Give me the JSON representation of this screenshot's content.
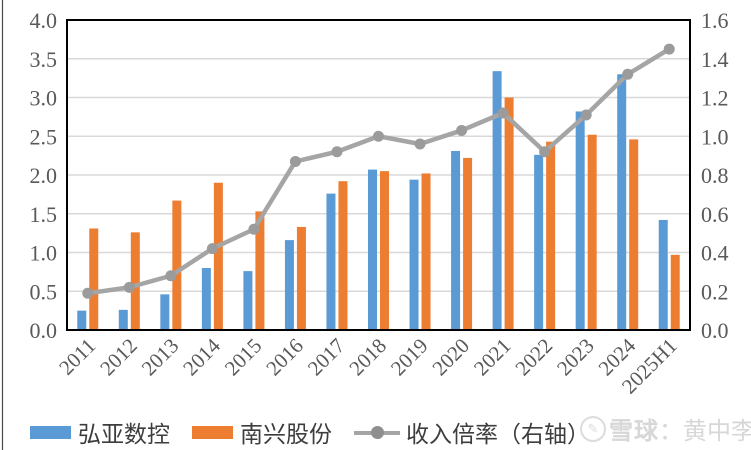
{
  "chart_data": {
    "type": "combo-bar-line",
    "categories": [
      "2011",
      "2012",
      "2013",
      "2014",
      "2015",
      "2016",
      "2017",
      "2018",
      "2019",
      "2020",
      "2021",
      "2022",
      "2023",
      "2024",
      "2025H1"
    ],
    "bar_series": [
      {
        "name": "弘亚数控",
        "color": "#5B9BD5",
        "values": [
          0.25,
          0.26,
          0.46,
          0.8,
          0.76,
          1.16,
          1.76,
          2.07,
          1.94,
          2.31,
          3.34,
          2.26,
          2.82,
          3.3,
          1.42
        ]
      },
      {
        "name": "南兴股份",
        "color": "#ED7D31",
        "values": [
          1.31,
          1.26,
          1.67,
          1.9,
          1.53,
          1.33,
          1.92,
          2.05,
          2.02,
          2.22,
          3.0,
          2.43,
          2.52,
          2.46,
          0.97
        ]
      }
    ],
    "line_series": {
      "name": "收入倍率（右轴）",
      "color": "#A5A5A5",
      "axis": "right",
      "values": [
        0.19,
        0.22,
        0.28,
        0.42,
        0.52,
        0.87,
        0.92,
        1.0,
        0.96,
        1.03,
        1.12,
        0.92,
        1.11,
        1.32,
        1.45
      ]
    },
    "left_axis": {
      "min": 0,
      "max": 4.0,
      "step": 0.5
    },
    "right_axis": {
      "min": 0,
      "max": 1.6,
      "step": 0.2
    },
    "grid": true,
    "legend_position": "bottom",
    "title": "",
    "xlabel": "",
    "ylabel": ""
  },
  "colors": {
    "gridline": "#D9D9D9",
    "plot_border": "#000000",
    "axis_text": "#595959",
    "legend_text": "#3d3d3d",
    "watermark": "#d7d7d7"
  },
  "watermark": {
    "brand": "雪球",
    "separator": "：",
    "author": "黄中李"
  }
}
